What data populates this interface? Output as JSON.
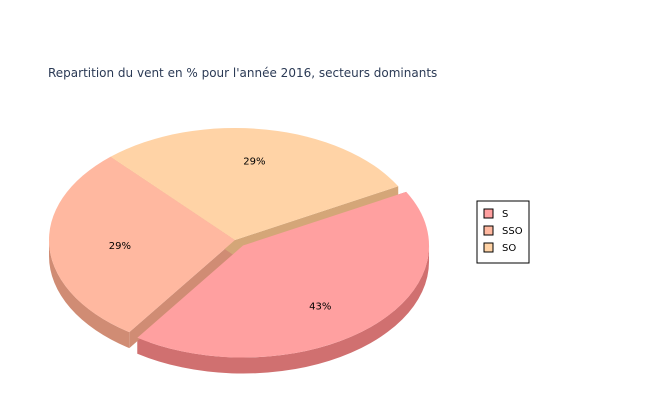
{
  "chart_data": {
    "type": "pie",
    "title": "Repartition du vent en % pour l'année 2016, secteurs dominants",
    "three_d": true,
    "exploded_slice": "S",
    "legend_position": "right",
    "slices": [
      {
        "name": "S",
        "value": 43,
        "label": "43%",
        "color": "#ffa0a0",
        "side_color": "#d07070"
      },
      {
        "name": "SSO",
        "value": 29,
        "label": "29%",
        "color": "#ffb8a0",
        "side_color": "#d08c74"
      },
      {
        "name": "SO",
        "value": 29,
        "label": "29%",
        "color": "#ffd3a6",
        "side_color": "#d4a678"
      }
    ]
  }
}
